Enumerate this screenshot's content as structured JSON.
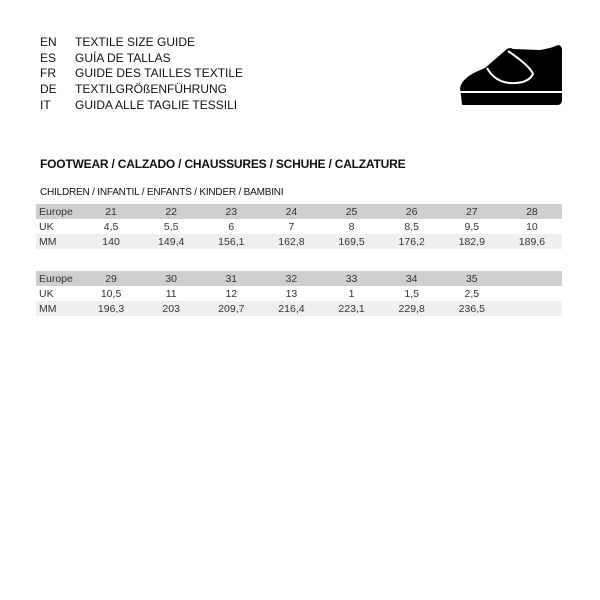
{
  "languages": [
    {
      "code": "EN",
      "text": "TEXTILE SIZE GUIDE"
    },
    {
      "code": "ES",
      "text": "GUÍA DE TALLAS"
    },
    {
      "code": "FR",
      "text": "GUIDE DES TAILLES TEXTILE"
    },
    {
      "code": "DE",
      "text": "TEXTILGRÖßENFÜHRUNG"
    },
    {
      "code": "IT",
      "text": "GUIDA ALLE TAGLIE TESSILI"
    }
  ],
  "icon": "shoe-icon",
  "section_title": "FOOTWEAR / CALZADO / CHAUSSURES / SCHUHE / CALZATURE",
  "subsection": "CHILDREN / INFANTIL / ENFANTS / KINDER / BAMBINI",
  "tables": [
    {
      "rows": [
        {
          "label": "Europe",
          "values": [
            "21",
            "22",
            "23",
            "24",
            "25",
            "26",
            "27",
            "28"
          ]
        },
        {
          "label": "UK",
          "values": [
            "4,5",
            "5,5",
            "6",
            "7",
            "8",
            "8,5",
            "9,5",
            "10"
          ]
        },
        {
          "label": "MM",
          "values": [
            "140",
            "149,4",
            "156,1",
            "162,8",
            "169,5",
            "176,2",
            "182,9",
            "189,6"
          ]
        }
      ]
    },
    {
      "rows": [
        {
          "label": "Europe",
          "values": [
            "29",
            "30",
            "31",
            "32",
            "33",
            "34",
            "35",
            ""
          ]
        },
        {
          "label": "UK",
          "values": [
            "10,5",
            "11",
            "12",
            "13",
            "1",
            "1,5",
            "2,5",
            ""
          ]
        },
        {
          "label": "MM",
          "values": [
            "196,3",
            "203",
            "209,7",
            "216,4",
            "223,1",
            "229,8",
            "236,5",
            ""
          ]
        }
      ]
    }
  ]
}
